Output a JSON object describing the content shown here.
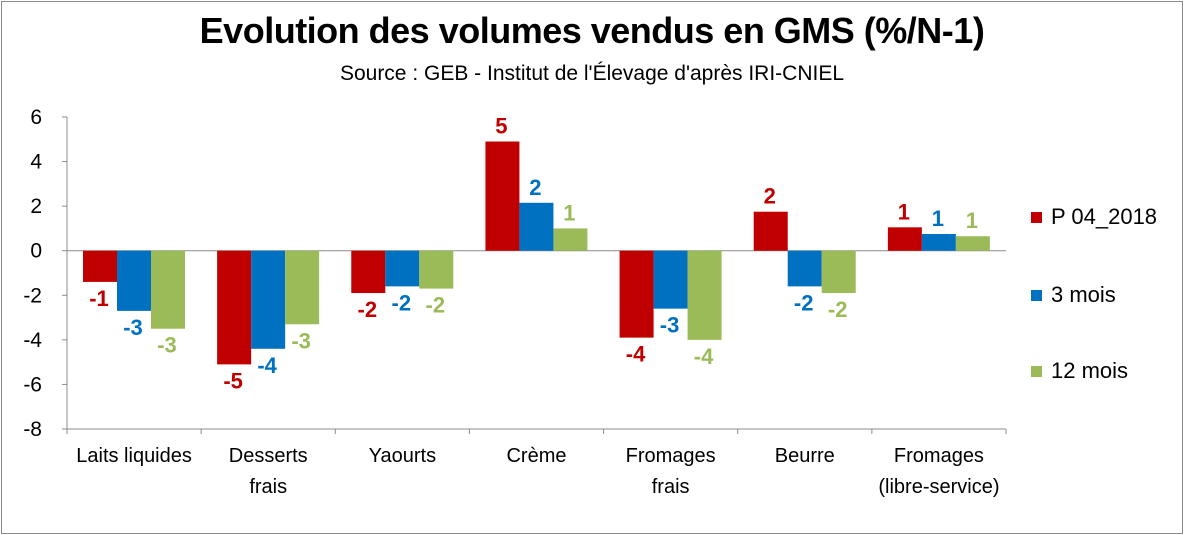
{
  "colors": {
    "series1": "#c00000",
    "series2": "#0070c0",
    "series3": "#9bbb59",
    "axis": "#8c8c8c"
  },
  "chart_data": {
    "type": "bar",
    "title": "Evolution des volumes vendus en GMS (%/N-1)",
    "subtitle": "Source : GEB - Institut de l'Élevage d'après  IRI-CNIEL",
    "xlabel": "",
    "ylabel": "",
    "ylim": [
      -8,
      6
    ],
    "yticks": [
      6,
      4,
      2,
      0,
      -2,
      -4,
      -6,
      -8
    ],
    "ytick_labels": [
      "6",
      "4",
      "2",
      "0",
      "-2",
      "-4",
      "-6",
      "-8"
    ],
    "grid": false,
    "legend_position": "right",
    "categories": [
      [
        "Laits liquides"
      ],
      [
        "Desserts",
        "frais"
      ],
      [
        "Yaourts"
      ],
      [
        "Crème"
      ],
      [
        "Fromages",
        "frais"
      ],
      [
        "Beurre"
      ],
      [
        "Fromages",
        "(libre-service)"
      ]
    ],
    "series": [
      {
        "name": "P 04_2018",
        "values": [
          -1.4,
          -5.1,
          -1.9,
          4.9,
          -3.9,
          1.75,
          1.05
        ],
        "labels": [
          "-1",
          "-5",
          "-2",
          "5",
          "-4",
          "2",
          "1"
        ]
      },
      {
        "name": "3 mois",
        "values": [
          -2.7,
          -4.4,
          -1.6,
          2.15,
          -2.6,
          -1.6,
          0.75
        ],
        "labels": [
          "-3",
          "-4",
          "-2",
          "2",
          "-3",
          "-2",
          "1"
        ]
      },
      {
        "name": "12 mois",
        "values": [
          -3.5,
          -3.3,
          -1.7,
          1.0,
          -4.0,
          -1.9,
          0.65
        ],
        "labels": [
          "-3",
          "-3",
          "-2",
          "1",
          "-4",
          "-2",
          "1"
        ]
      }
    ]
  }
}
